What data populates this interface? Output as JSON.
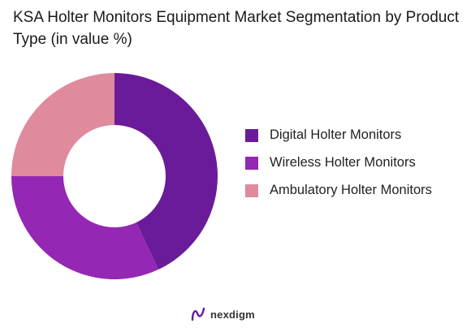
{
  "chart_data": {
    "type": "pie",
    "title": "KSA Holter Monitors Equipment Market Segmentation by Product Type (in value %)",
    "categories": [
      "Digital Holter Monitors",
      "Wireless Holter Monitors",
      "Ambulatory Holter Monitors"
    ],
    "values": [
      43,
      32,
      25
    ],
    "colors": [
      "#6a1b9a",
      "#9427b3",
      "#e08a9e"
    ],
    "donut": true,
    "legend_position": "right"
  },
  "brand": {
    "name": "nexdigm",
    "icon": "nexdigm-logo-icon"
  }
}
